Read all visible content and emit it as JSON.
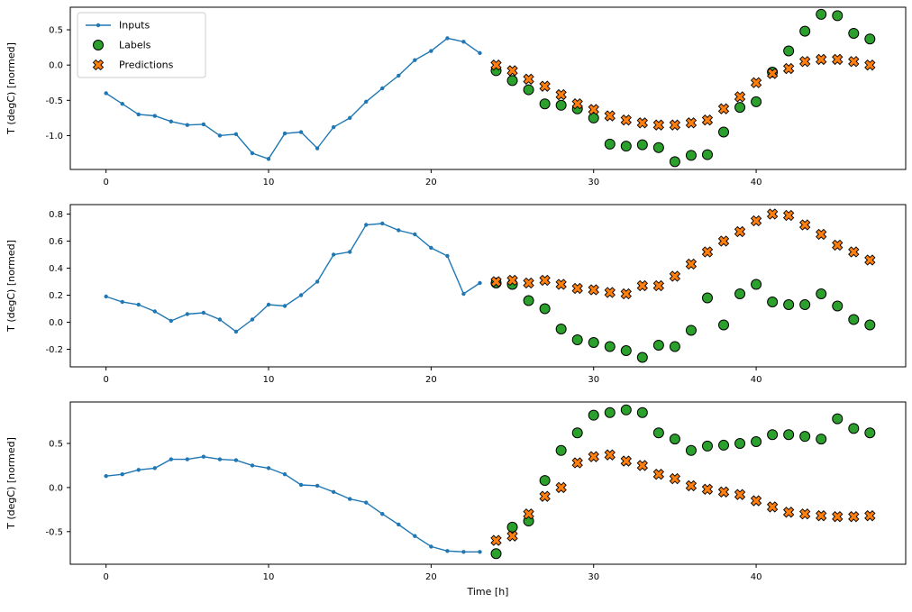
{
  "figure": {
    "xlabel": "Time [h]",
    "ylabel": "T (degC) [normed]",
    "colors": {
      "inputs": "#1f77b4",
      "labels": "#2ca02c",
      "predictions": "#ff7f0e",
      "axis": "#000000",
      "legend_border": "#cccccc",
      "background": "#ffffff"
    },
    "legend": {
      "position": "upper-left-subplot-1",
      "entries": [
        {
          "label": "Inputs",
          "marker": "line-dot",
          "color": "#1f77b4"
        },
        {
          "label": "Labels",
          "marker": "circle",
          "color": "#2ca02c"
        },
        {
          "label": "Predictions",
          "marker": "x",
          "color": "#ff7f0e"
        }
      ]
    }
  },
  "chart_data": [
    {
      "type": "line",
      "subplot": 1,
      "title": "",
      "xlabel": "",
      "ylabel": "T (degC) [normed]",
      "xlim": [
        -2.2,
        49.2
      ],
      "ylim": [
        -1.48,
        0.82
      ],
      "xticks": [
        0,
        10,
        20,
        30,
        40
      ],
      "yticks": [
        -1.0,
        -0.5,
        0.0,
        0.5
      ],
      "grid": false,
      "series": [
        {
          "name": "Inputs",
          "style": "line-dot",
          "color": "#1f77b4",
          "x": [
            0,
            1,
            2,
            3,
            4,
            5,
            6,
            7,
            8,
            9,
            10,
            11,
            12,
            13,
            14,
            15,
            16,
            17,
            18,
            19,
            20,
            21,
            22,
            23
          ],
          "y": [
            -0.4,
            -0.55,
            -0.7,
            -0.72,
            -0.8,
            -0.85,
            -0.84,
            -1.0,
            -0.98,
            -1.25,
            -1.33,
            -0.97,
            -0.95,
            -1.18,
            -0.88,
            -0.75,
            -0.52,
            -0.33,
            -0.15,
            0.07,
            0.2,
            0.38,
            0.33,
            0.17
          ]
        },
        {
          "name": "Labels",
          "style": "circle",
          "color": "#2ca02c",
          "x": [
            24,
            25,
            26,
            27,
            28,
            29,
            30,
            31,
            32,
            33,
            34,
            35,
            36,
            37,
            38,
            39,
            40,
            41,
            42,
            43,
            44,
            45,
            46,
            47
          ],
          "y": [
            -0.08,
            -0.22,
            -0.35,
            -0.55,
            -0.57,
            -0.62,
            -0.75,
            -1.12,
            -1.15,
            -1.13,
            -1.17,
            -1.37,
            -1.28,
            -1.27,
            -0.95,
            -0.6,
            -0.52,
            -0.1,
            0.2,
            0.48,
            0.72,
            0.7,
            0.45,
            0.37
          ]
        },
        {
          "name": "Predictions",
          "style": "x",
          "color": "#ff7f0e",
          "x": [
            24,
            25,
            26,
            27,
            28,
            29,
            30,
            31,
            32,
            33,
            34,
            35,
            36,
            37,
            38,
            39,
            40,
            41,
            42,
            43,
            44,
            45,
            46,
            47
          ],
          "y": [
            0.0,
            -0.08,
            -0.2,
            -0.3,
            -0.42,
            -0.55,
            -0.63,
            -0.72,
            -0.78,
            -0.82,
            -0.85,
            -0.85,
            -0.82,
            -0.78,
            -0.62,
            -0.45,
            -0.25,
            -0.12,
            -0.05,
            0.05,
            0.08,
            0.08,
            0.05,
            0.0
          ]
        }
      ]
    },
    {
      "type": "line",
      "subplot": 2,
      "title": "",
      "xlabel": "",
      "ylabel": "T (degC) [normed]",
      "xlim": [
        -2.2,
        49.2
      ],
      "ylim": [
        -0.33,
        0.87
      ],
      "xticks": [
        0,
        10,
        20,
        30,
        40
      ],
      "yticks": [
        -0.2,
        0.0,
        0.2,
        0.4,
        0.6,
        0.8
      ],
      "grid": false,
      "series": [
        {
          "name": "Inputs",
          "style": "line-dot",
          "color": "#1f77b4",
          "x": [
            0,
            1,
            2,
            3,
            4,
            5,
            6,
            7,
            8,
            9,
            10,
            11,
            12,
            13,
            14,
            15,
            16,
            17,
            18,
            19,
            20,
            21,
            22,
            23
          ],
          "y": [
            0.19,
            0.15,
            0.13,
            0.08,
            0.01,
            0.06,
            0.07,
            0.02,
            -0.07,
            0.02,
            0.13,
            0.12,
            0.2,
            0.3,
            0.5,
            0.52,
            0.72,
            0.73,
            0.68,
            0.65,
            0.55,
            0.49,
            0.21,
            0.29
          ]
        },
        {
          "name": "Labels",
          "style": "circle",
          "color": "#2ca02c",
          "x": [
            24,
            25,
            26,
            27,
            28,
            29,
            30,
            31,
            32,
            33,
            34,
            35,
            36,
            37,
            38,
            39,
            40,
            41,
            42,
            43,
            44,
            45,
            46,
            47
          ],
          "y": [
            0.29,
            0.28,
            0.16,
            0.1,
            -0.05,
            -0.13,
            -0.15,
            -0.18,
            -0.21,
            -0.26,
            -0.17,
            -0.18,
            -0.06,
            0.18,
            -0.02,
            0.21,
            0.28,
            0.15,
            0.13,
            0.13,
            0.21,
            0.12,
            0.02,
            -0.02
          ]
        },
        {
          "name": "Predictions",
          "style": "x",
          "color": "#ff7f0e",
          "x": [
            24,
            25,
            26,
            27,
            28,
            29,
            30,
            31,
            32,
            33,
            34,
            35,
            36,
            37,
            38,
            39,
            40,
            41,
            42,
            43,
            44,
            45,
            46,
            47
          ],
          "y": [
            0.3,
            0.31,
            0.29,
            0.31,
            0.28,
            0.25,
            0.24,
            0.22,
            0.21,
            0.27,
            0.27,
            0.34,
            0.43,
            0.52,
            0.6,
            0.67,
            0.75,
            0.8,
            0.79,
            0.72,
            0.65,
            0.57,
            0.52,
            0.46
          ]
        }
      ]
    },
    {
      "type": "line",
      "subplot": 3,
      "title": "",
      "xlabel": "Time [h]",
      "ylabel": "T (degC) [normed]",
      "xlim": [
        -2.2,
        49.2
      ],
      "ylim": [
        -0.87,
        0.97
      ],
      "xticks": [
        0,
        10,
        20,
        30,
        40
      ],
      "yticks": [
        -0.5,
        0.0,
        0.5
      ],
      "grid": false,
      "series": [
        {
          "name": "Inputs",
          "style": "line-dot",
          "color": "#1f77b4",
          "x": [
            0,
            1,
            2,
            3,
            4,
            5,
            6,
            7,
            8,
            9,
            10,
            11,
            12,
            13,
            14,
            15,
            16,
            17,
            18,
            19,
            20,
            21,
            22,
            23
          ],
          "y": [
            0.13,
            0.15,
            0.2,
            0.22,
            0.32,
            0.32,
            0.35,
            0.32,
            0.31,
            0.25,
            0.22,
            0.15,
            0.03,
            0.02,
            -0.05,
            -0.13,
            -0.17,
            -0.3,
            -0.42,
            -0.55,
            -0.67,
            -0.72,
            -0.73,
            -0.73
          ]
        },
        {
          "name": "Labels",
          "style": "circle",
          "color": "#2ca02c",
          "x": [
            24,
            25,
            26,
            27,
            28,
            29,
            30,
            31,
            32,
            33,
            34,
            35,
            36,
            37,
            38,
            39,
            40,
            41,
            42,
            43,
            44,
            45,
            46,
            47
          ],
          "y": [
            -0.75,
            -0.45,
            -0.38,
            0.08,
            0.42,
            0.62,
            0.82,
            0.85,
            0.88,
            0.85,
            0.62,
            0.55,
            0.42,
            0.47,
            0.48,
            0.5,
            0.52,
            0.6,
            0.6,
            0.58,
            0.55,
            0.78,
            0.67,
            0.62
          ]
        },
        {
          "name": "Predictions",
          "style": "x",
          "color": "#ff7f0e",
          "x": [
            24,
            25,
            26,
            27,
            28,
            29,
            30,
            31,
            32,
            33,
            34,
            35,
            36,
            37,
            38,
            39,
            40,
            41,
            42,
            43,
            44,
            45,
            46,
            47
          ],
          "y": [
            -0.6,
            -0.55,
            -0.3,
            -0.1,
            0.0,
            0.28,
            0.35,
            0.37,
            0.3,
            0.25,
            0.15,
            0.1,
            0.02,
            -0.02,
            -0.05,
            -0.08,
            -0.15,
            -0.22,
            -0.28,
            -0.3,
            -0.32,
            -0.33,
            -0.33,
            -0.32
          ]
        }
      ]
    }
  ]
}
